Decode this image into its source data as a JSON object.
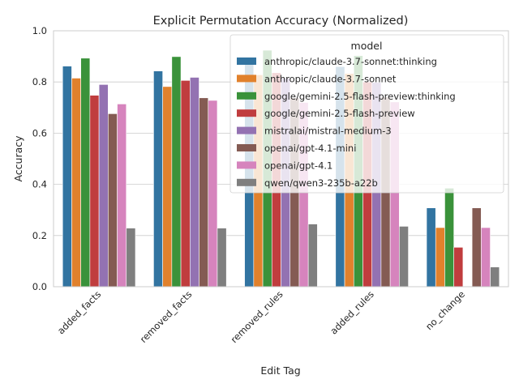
{
  "chart_data": {
    "type": "bar",
    "title": "Explicit Permutation Accuracy (Normalized)",
    "xlabel": "Edit Tag",
    "ylabel": "Accuracy",
    "ylim": [
      0,
      1.0
    ],
    "yticks": [
      "0.0",
      "0.2",
      "0.4",
      "0.6",
      "0.8",
      "1.0"
    ],
    "grid": true,
    "legend": {
      "title": "model",
      "placement": "top-right"
    },
    "categories": [
      "added_facts",
      "removed_facts",
      "removed_rules",
      "added_rules",
      "no_change"
    ],
    "series": [
      {
        "name": "anthropic/claude-3.7-sonnet:thinking",
        "color": "#3274a1",
        "values": [
          0.862,
          0.843,
          0.87,
          0.86,
          0.308
        ]
      },
      {
        "name": "anthropic/claude-3.7-sonnet",
        "color": "#e1812c",
        "values": [
          0.815,
          0.782,
          0.828,
          0.833,
          0.231
        ]
      },
      {
        "name": "google/gemini-2.5-flash-preview:thinking",
        "color": "#3a923a",
        "values": [
          0.893,
          0.899,
          0.924,
          0.903,
          0.385
        ]
      },
      {
        "name": "google/gemini-2.5-flash-preview",
        "color": "#c03d3e",
        "values": [
          0.748,
          0.806,
          0.836,
          0.8,
          0.154
        ]
      },
      {
        "name": "mistralai/mistral-medium-3",
        "color": "#9372b2",
        "values": [
          0.79,
          0.818,
          0.815,
          0.798,
          0.0
        ]
      },
      {
        "name": "openai/gpt-4.1-mini",
        "color": "#845b53",
        "values": [
          0.676,
          0.738,
          0.738,
          0.741,
          0.308
        ]
      },
      {
        "name": "openai/gpt-4.1",
        "color": "#d684bd",
        "values": [
          0.714,
          0.728,
          0.72,
          0.722,
          0.231
        ]
      },
      {
        "name": "qwen/qwen3-235b-a22b",
        "color": "#7f7f7f",
        "values": [
          0.229,
          0.229,
          0.245,
          0.236,
          0.077
        ]
      }
    ]
  }
}
